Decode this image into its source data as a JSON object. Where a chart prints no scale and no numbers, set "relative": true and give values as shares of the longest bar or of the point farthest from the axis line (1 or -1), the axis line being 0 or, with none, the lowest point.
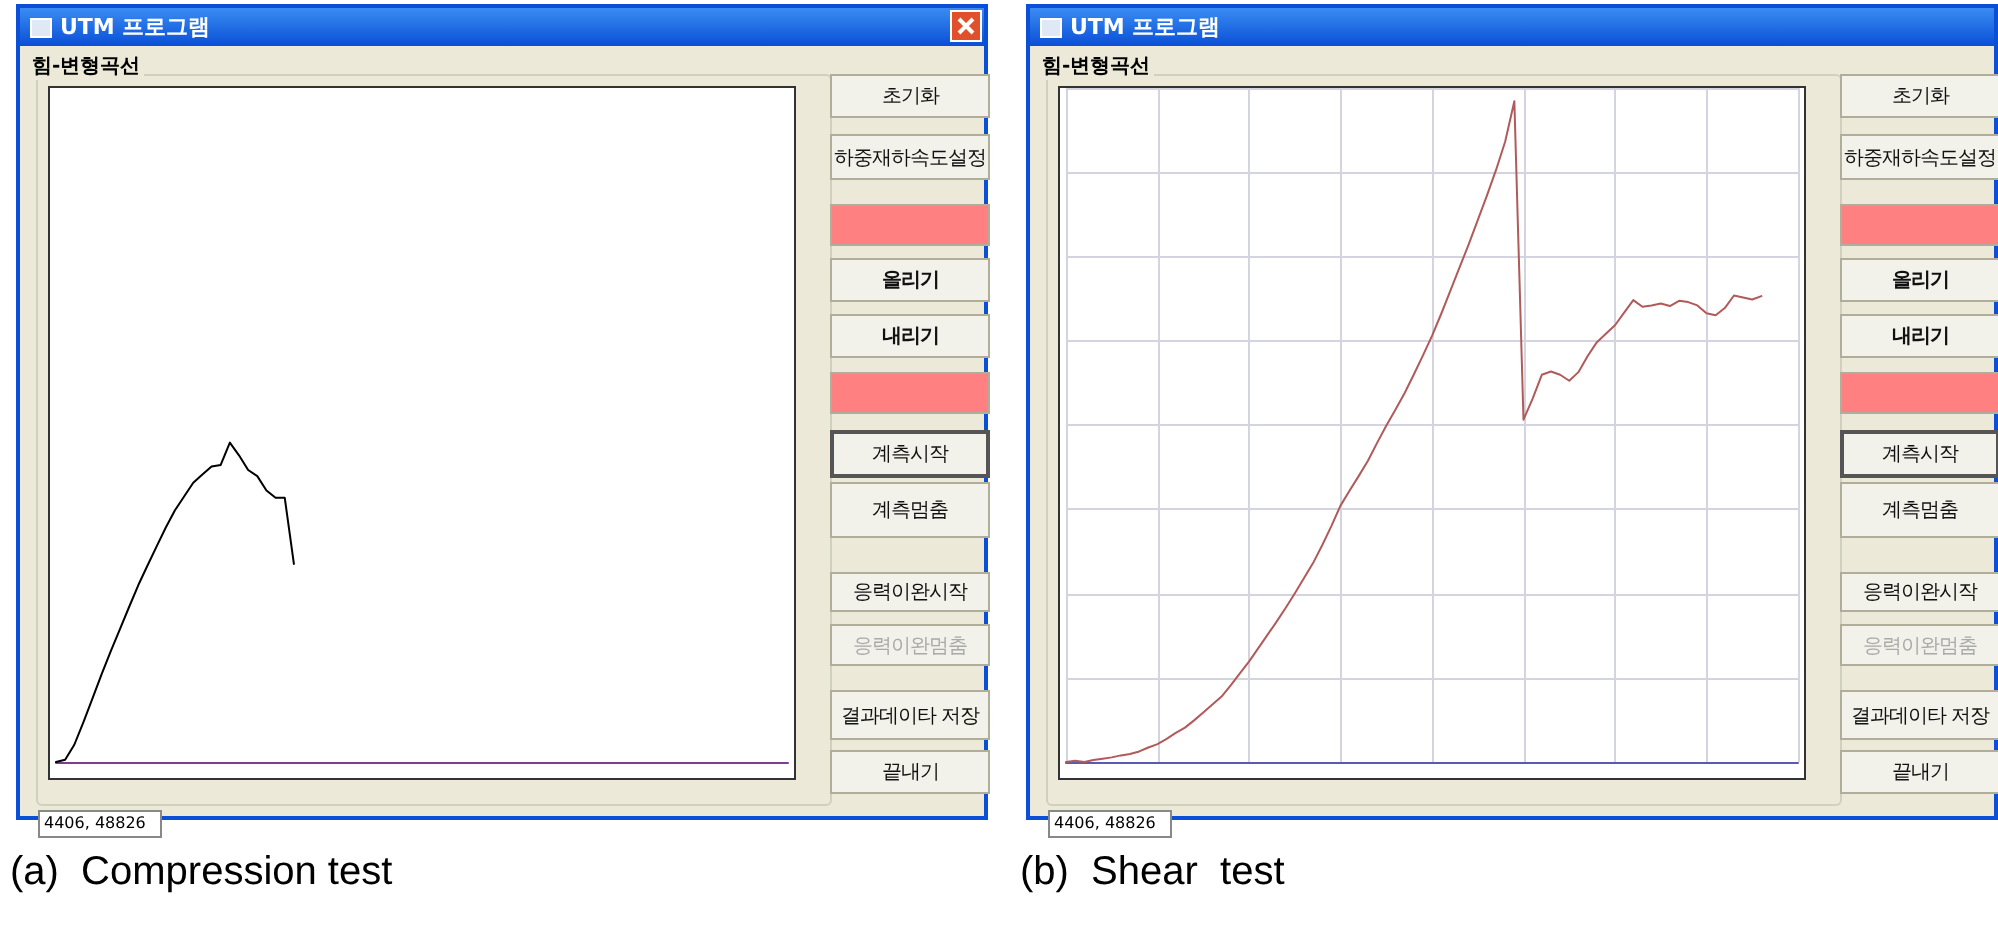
{
  "chart_data": [
    {
      "type": "line",
      "title": "(a)  Compression test",
      "annotations": [
        "UTM 프로그램",
        "힘-변형곡선",
        "초기화",
        "하중재하속도설정",
        "올리기",
        "내리기",
        "계측시작",
        "계측멈춤",
        "응력이완시작",
        "응력이완멈춤",
        "결과데이타 저장",
        "끝내기",
        "4406, 48826"
      ],
      "relative": true,
      "marker": "none",
      "line_style": "solid",
      "categories": [
        null,
        null,
        null,
        null,
        null,
        null,
        null,
        null,
        null,
        null,
        null,
        null,
        null,
        null,
        null,
        null,
        null,
        null,
        null,
        null,
        null,
        null,
        null,
        null,
        null,
        null,
        null,
        null,
        null,
        null,
        null,
        null,
        null,
        null,
        null,
        null,
        null,
        null,
        null,
        null,
        null,
        null,
        null,
        null,
        null,
        null,
        null,
        null,
        null,
        null,
        null,
        null,
        null,
        null,
        null,
        null,
        null,
        null,
        null,
        null,
        null,
        null,
        null,
        null,
        null,
        null,
        null,
        null,
        null,
        null,
        null,
        null,
        null,
        null,
        null,
        null,
        null,
        null,
        null,
        null,
        null
      ],
      "series": [
        {
          "color": "#000000",
          "values": [
            0,
            0.007,
            0.054,
            0.125,
            0.2,
            0.276,
            0.348,
            0.417,
            0.486,
            0.554,
            0.615,
            0.675,
            0.734,
            0.788,
            0.831,
            0.874,
            0.9,
            0.925,
            0.93,
            1,
            0.96,
            0.914,
            0.895,
            0.85,
            0.827,
            0.827,
            0.62,
            null,
            null,
            null,
            null,
            null,
            null,
            null,
            null,
            null,
            null,
            null,
            null,
            null,
            null,
            null,
            null,
            null,
            null,
            null,
            null,
            null,
            null,
            null,
            null,
            null,
            null,
            null,
            null,
            null,
            null,
            null,
            null,
            null,
            null,
            null,
            null,
            null,
            null,
            null,
            null,
            null,
            null,
            null,
            null,
            null,
            null,
            null,
            null,
            null,
            null,
            null,
            null,
            null,
            null
          ]
        }
      ]
    },
    {
      "type": "line",
      "title": "(b)  Shear  test",
      "annotations": [
        "UTM 프로그램",
        "힘-변형곡선",
        "초기화",
        "하중재하속도설정",
        "올리기",
        "내리기",
        "계측시작",
        "계측멈춤",
        "응력이완시작",
        "응력이완멈춤",
        "결과데이타 저장",
        "끝내기",
        "4406, 48826"
      ],
      "relative": true,
      "grid": true,
      "marker": "none",
      "line_style": "solid",
      "categories": [
        null,
        null,
        null,
        null,
        null,
        null,
        null,
        null,
        null,
        null,
        null,
        null,
        null,
        null,
        null,
        null,
        null,
        null,
        null,
        null,
        null,
        null,
        null,
        null,
        null,
        null,
        null,
        null,
        null,
        null,
        null,
        null,
        null,
        null,
        null,
        null,
        null,
        null,
        null,
        null,
        null,
        null,
        null,
        null,
        null,
        null,
        null,
        null,
        null,
        null,
        null,
        null,
        null,
        null,
        null,
        null,
        null,
        null,
        null,
        null,
        null,
        null,
        null,
        null,
        null,
        null,
        null,
        null,
        null,
        null,
        null,
        null,
        null,
        null,
        null,
        null,
        null,
        null,
        null,
        null,
        null
      ],
      "series": [
        {
          "color": "#b05a5a",
          "values": [
            0,
            0.002,
            0,
            0.003,
            0.005,
            0.007,
            0.01,
            0.012,
            0.016,
            0.022,
            0.027,
            0.035,
            0.044,
            0.052,
            0.063,
            0.075,
            0.087,
            0.099,
            0.116,
            0.134,
            0.152,
            0.172,
            0.192,
            0.212,
            0.233,
            0.255,
            0.278,
            0.301,
            0.328,
            0.357,
            0.388,
            0.411,
            0.433,
            0.456,
            0.483,
            0.509,
            0.533,
            0.558,
            0.586,
            0.615,
            0.645,
            0.678,
            0.713,
            0.748,
            0.783,
            0.82,
            0.857,
            0.896,
            0.939,
            1,
            0.518,
            0.55,
            0.586,
            0.591,
            0.586,
            0.577,
            0.59,
            0.614,
            0.635,
            0.648,
            0.661,
            0.68,
            0.699,
            0.689,
            0.691,
            0.694,
            0.69,
            0.698,
            0.696,
            0.691,
            0.679,
            0.676,
            0.687,
            0.706,
            0.703,
            0.7,
            0.705,
            null,
            null,
            null,
            null
          ]
        }
      ]
    }
  ]
}
